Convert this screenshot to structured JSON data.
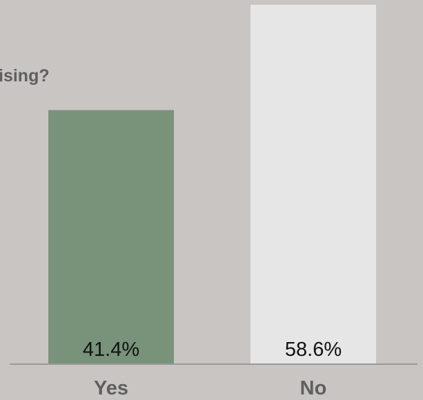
{
  "question": {
    "title": "ising?"
  },
  "colors": {
    "background": "#c9c5c3",
    "baseline": "#9a9896",
    "text_muted": "#5f5f5f",
    "text_dark": "#111111"
  },
  "chart_data": {
    "type": "bar",
    "title": "",
    "xlabel": "",
    "ylabel": "",
    "ylim": [
      0,
      58.6
    ],
    "grid": false,
    "legend": "none",
    "categories": [
      "Yes",
      "No"
    ],
    "values": [
      41.4,
      58.6
    ],
    "value_labels": [
      "41.4%",
      "58.6%"
    ],
    "bar_colors": [
      "#79937b",
      "#e6e6e6"
    ]
  }
}
